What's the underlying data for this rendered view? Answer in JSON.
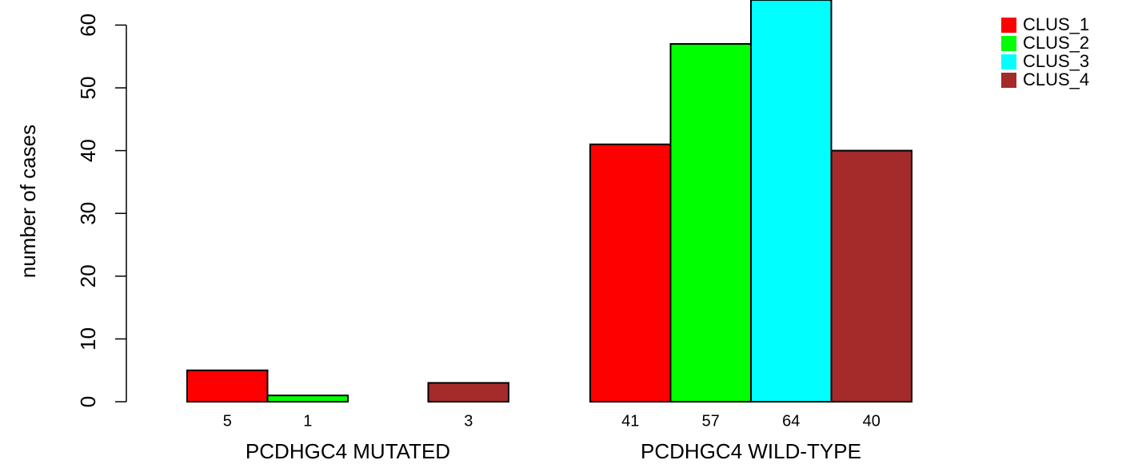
{
  "chart_data": {
    "type": "bar",
    "ylabel": "number of cases",
    "ylim": [
      0,
      64
    ],
    "yticks": [
      0,
      10,
      20,
      30,
      40,
      50,
      60
    ],
    "groups": [
      {
        "label": "PCDHGC4 MUTATED",
        "values": [
          5,
          1,
          0,
          3
        ],
        "value_labels": [
          "5",
          "1",
          "",
          "3"
        ]
      },
      {
        "label": "PCDHGC4 WILD-TYPE",
        "values": [
          41,
          57,
          64,
          40
        ],
        "value_labels": [
          "41",
          "57",
          "64",
          "40"
        ]
      }
    ],
    "series": [
      {
        "name": "CLUS_1",
        "color": "#ff0000"
      },
      {
        "name": "CLUS_2",
        "color": "#00ff00"
      },
      {
        "name": "CLUS_3",
        "color": "#00ffff"
      },
      {
        "name": "CLUS_4",
        "color": "#a52a2a"
      }
    ],
    "legend_position": "top-right",
    "grid": false
  }
}
